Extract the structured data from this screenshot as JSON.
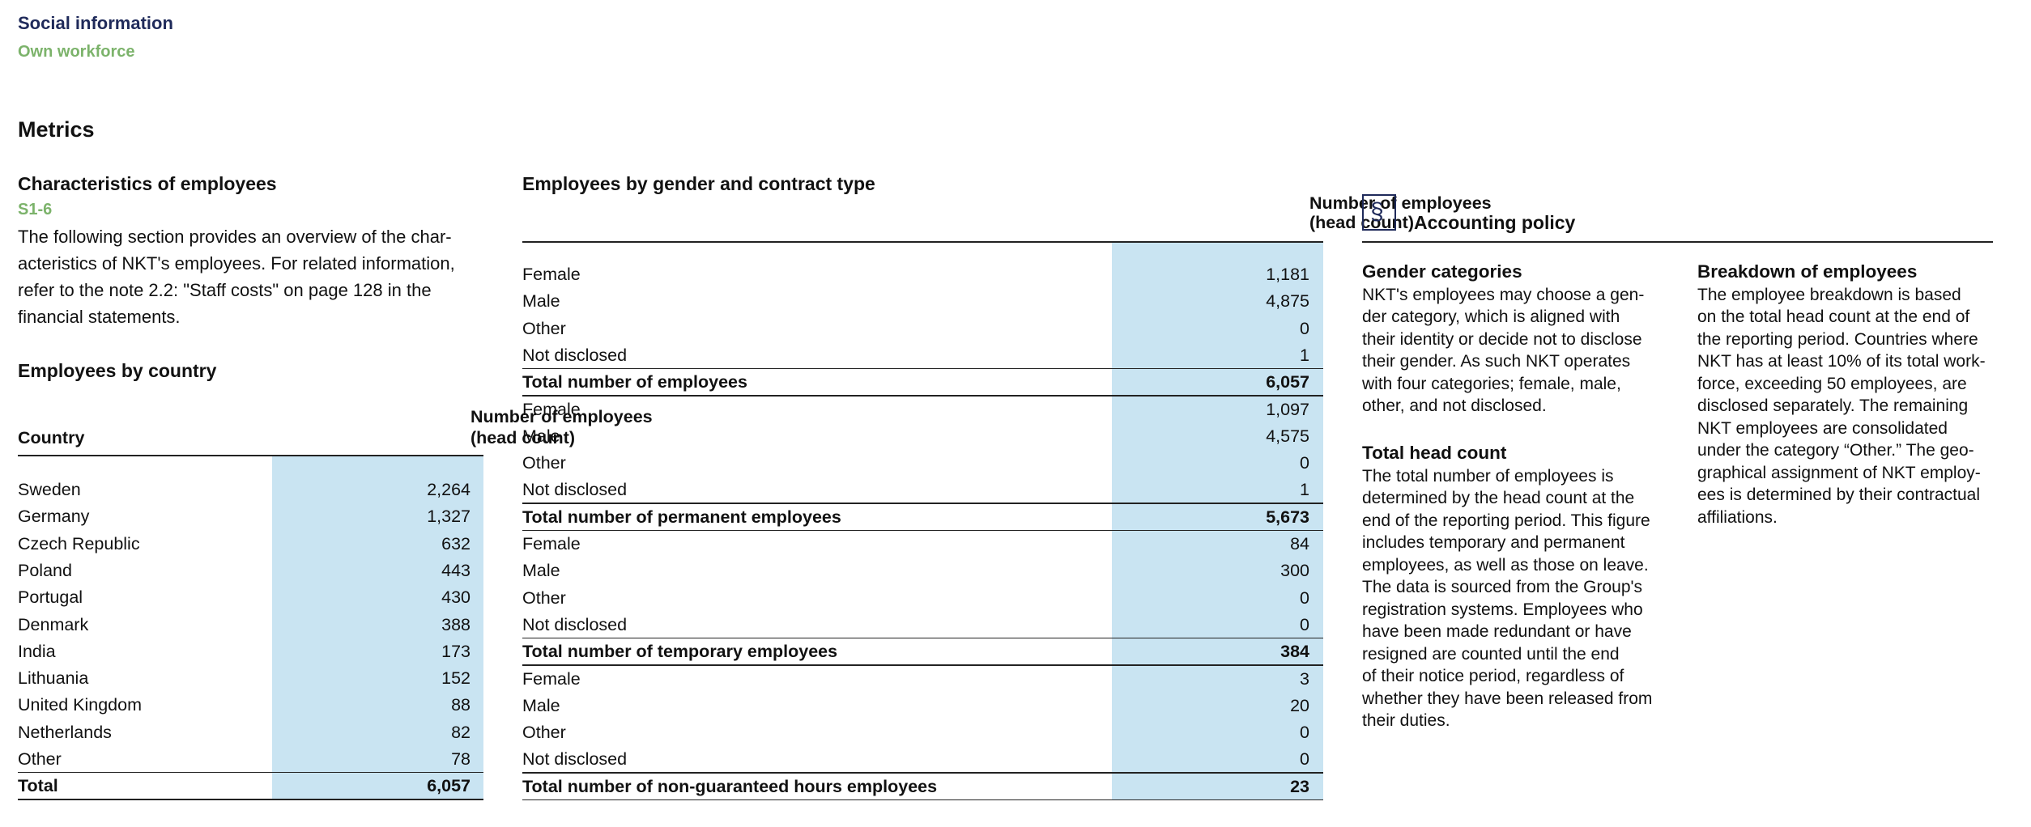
{
  "header": {
    "section": "Social information",
    "subsection": "Own workforce"
  },
  "metrics_title": "Metrics",
  "characteristics": {
    "title": "Characteristics of employees",
    "code": "S1-6",
    "lines": [
      "The following section provides an overview of the char-",
      "acteristics of NKT's employees. For related information,",
      "refer to the note 2.2: \"Staff costs\" on page 128 in the",
      "financial statements."
    ]
  },
  "country_table": {
    "title": "Employees by country",
    "label_header": "Country",
    "value_header": [
      "Number of employees",
      "(head count)"
    ],
    "rows": [
      [
        "Sweden",
        "2,264"
      ],
      [
        "Germany",
        "1,327"
      ],
      [
        "Czech Republic",
        "632"
      ],
      [
        "Poland",
        "443"
      ],
      [
        "Portugal",
        "430"
      ],
      [
        "Denmark",
        "388"
      ],
      [
        "India",
        "173"
      ],
      [
        "Lithuania",
        "152"
      ],
      [
        "United Kingdom",
        "88"
      ],
      [
        "Netherlands",
        "82"
      ],
      [
        "Other",
        "78"
      ]
    ],
    "total": [
      "Total",
      "6,057"
    ]
  },
  "gender_table": {
    "title": "Employees by gender and contract type",
    "value_header": [
      "Number of employees",
      "(head count)"
    ],
    "groups": [
      {
        "rows": [
          [
            "Female",
            "1,181"
          ],
          [
            "Male",
            "4,875"
          ],
          [
            "Other",
            "0"
          ],
          [
            "Not disclosed",
            "1"
          ]
        ],
        "total": [
          "Total number of employees",
          "6,057"
        ]
      },
      {
        "rows": [
          [
            "Female",
            "1,097"
          ],
          [
            "Male",
            "4,575"
          ],
          [
            "Other",
            "0"
          ],
          [
            "Not disclosed",
            "1"
          ]
        ],
        "total": [
          "Total number of permanent employees",
          "5,673"
        ]
      },
      {
        "rows": [
          [
            "Female",
            "84"
          ],
          [
            "Male",
            "300"
          ],
          [
            "Other",
            "0"
          ],
          [
            "Not disclosed",
            "0"
          ]
        ],
        "total": [
          "Total number of temporary employees",
          "384"
        ]
      },
      {
        "rows": [
          [
            "Female",
            "3"
          ],
          [
            "Male",
            "20"
          ],
          [
            "Other",
            "0"
          ],
          [
            "Not disclosed",
            "0"
          ]
        ],
        "total": [
          "Total number of non-guaranteed hours employees",
          "23"
        ]
      }
    ]
  },
  "accounting_policy": {
    "icon": "§",
    "title": "Accounting policy",
    "sections": [
      {
        "heading": "Gender categories",
        "lines": [
          "NKT's employees may choose a gen-",
          "der category, which is aligned with",
          "their identity or decide not to disclose",
          "their gender. As such NKT operates",
          "with four categories; female, male,",
          "other, and not disclosed."
        ]
      },
      {
        "heading": "Total head count",
        "lines": [
          "The total number of employees is",
          "determined by the head count at the",
          "end of the reporting period. This figure",
          "includes temporary and permanent",
          "employees, as well as those on leave.",
          "The data is sourced from the Group's",
          "registration systems. Employees who",
          "have been made redundant or have",
          "resigned are counted until the end",
          "of their notice period, regardless of",
          "whether they have been released from",
          "their duties."
        ]
      },
      {
        "heading": "Breakdown of employees",
        "lines": [
          "The employee breakdown is based",
          "on the total head count at the end of",
          "the reporting period. Countries where",
          "NKT has at least 10% of its total work-",
          "force, exceeding 50 employees, are",
          "disclosed separately. The remaining",
          "NKT employees are consolidated",
          "under the category “Other.” The geo-",
          "graphical assignment of NKT employ-",
          "ees is determined by their contractual",
          "affiliations."
        ]
      }
    ]
  }
}
